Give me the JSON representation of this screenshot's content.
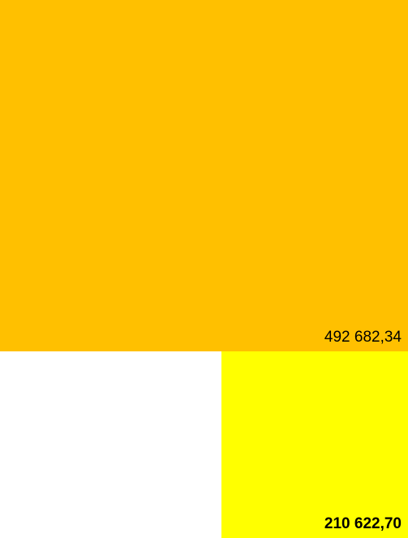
{
  "cells": {
    "top": {
      "value": "492 682,34",
      "fill": "#FFC000"
    },
    "bottom_right": {
      "value": "210 622,70",
      "fill": "#FFFF00"
    }
  }
}
